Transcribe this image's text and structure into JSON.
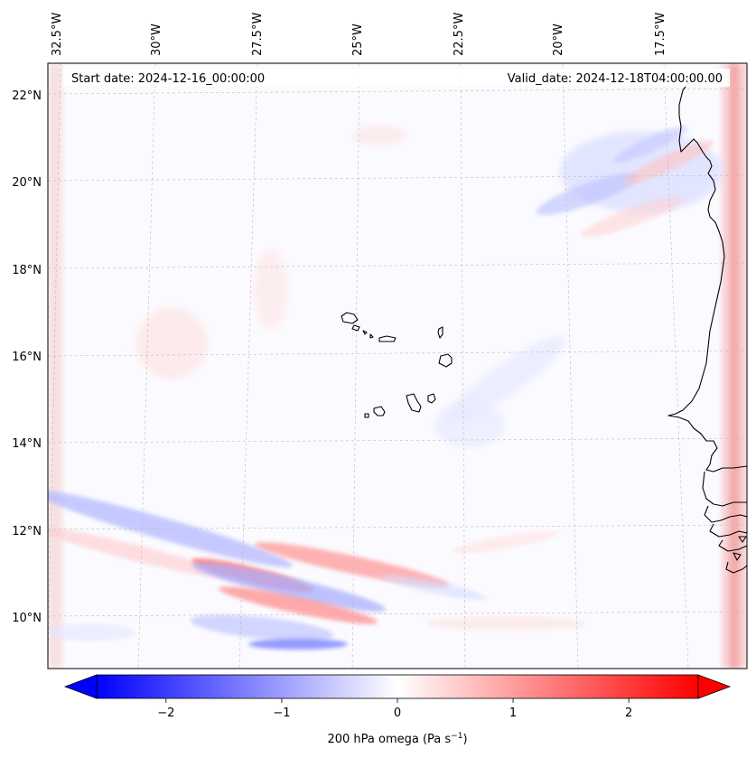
{
  "header": {
    "start_date": "Start date: 2024-12-16_00:00:00",
    "valid_date": "Valid_date: 2024-12-18T04:00:00.00"
  },
  "axes": {
    "lon_ticks": [
      "32.5°W",
      "30°W",
      "27.5°W",
      "25°W",
      "22.5°W",
      "20°W",
      "17.5°W"
    ],
    "lat_ticks": [
      "22°N",
      "20°N",
      "18°N",
      "16°N",
      "14°N",
      "12°N",
      "10°N"
    ]
  },
  "colorbar": {
    "label": "200 hPa omega (Pa s",
    "label_sup": "−1",
    "label_close": ")",
    "ticks": [
      "−2",
      "−1",
      "0",
      "1",
      "2"
    ],
    "tick_values": [
      -2,
      -1,
      0,
      1,
      2
    ],
    "range": [
      -2.6,
      2.6
    ],
    "colormap": "bwr",
    "colors": {
      "negative": "#0000ff",
      "zero": "#ffffff",
      "positive": "#ff0000"
    }
  },
  "map": {
    "extent_lon": [
      -33,
      -15.2
    ],
    "extent_lat": [
      8.9,
      22.8
    ],
    "field": "200 hPa omega",
    "coastline_color": "#000000",
    "grid": "on"
  }
}
